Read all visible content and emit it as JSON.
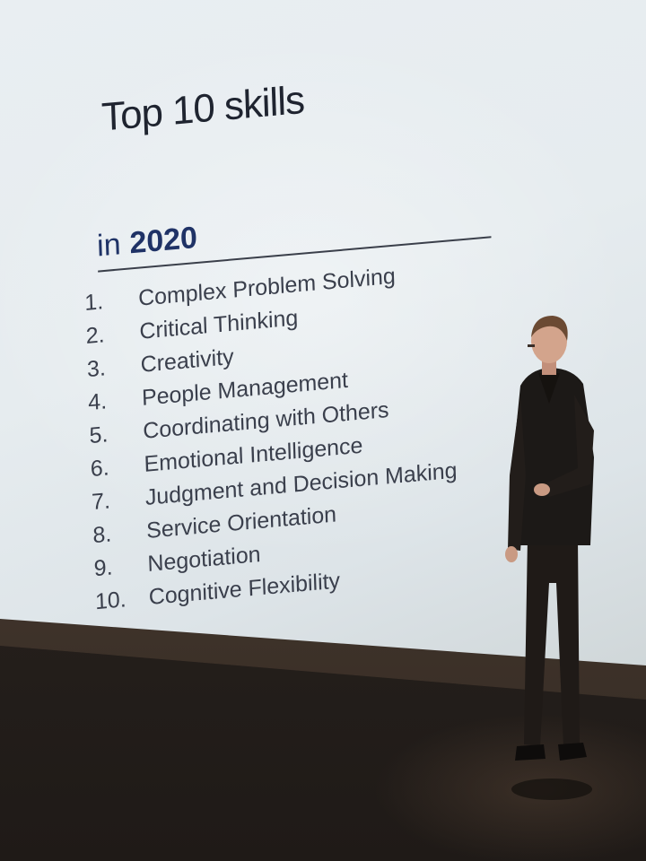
{
  "slide": {
    "title": "Top 10 skills",
    "subtitle_prefix": "in",
    "subtitle_year": "2020",
    "skills": [
      {
        "number": "1.",
        "label": "Complex Problem Solving"
      },
      {
        "number": "2.",
        "label": "Critical Thinking"
      },
      {
        "number": "3.",
        "label": "Creativity"
      },
      {
        "number": "4.",
        "label": "People Management"
      },
      {
        "number": "5.",
        "label": "Coordinating with Others"
      },
      {
        "number": "6.",
        "label": "Emotional Intelligence"
      },
      {
        "number": "7.",
        "label": "Judgment and Decision Making"
      },
      {
        "number": "8.",
        "label": "Service Orientation"
      },
      {
        "number": "9.",
        "label": "Negotiation"
      },
      {
        "number": "10.",
        "label": "Cognitive Flexibility"
      }
    ]
  },
  "colors": {
    "screen": "#e6ecef",
    "title_text": "#1f2430",
    "subtitle_text": "#1f3266",
    "list_text": "#3a3f4c",
    "floor": "#2a2420",
    "suit": "#1c1917"
  }
}
